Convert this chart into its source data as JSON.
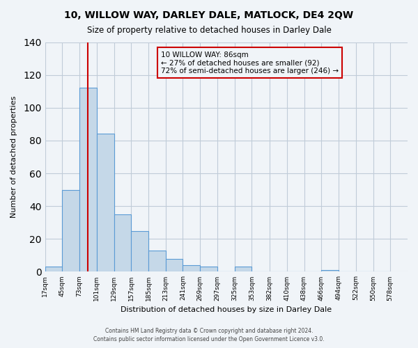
{
  "title": "10, WILLOW WAY, DARLEY DALE, MATLOCK, DE4 2QW",
  "subtitle": "Size of property relative to detached houses in Darley Dale",
  "xlabel": "Distribution of detached houses by size in Darley Dale",
  "ylabel": "Number of detached properties",
  "bar_values": [
    3,
    50,
    112,
    84,
    35,
    25,
    13,
    8,
    4,
    3,
    0,
    3,
    0,
    0,
    0,
    0,
    1,
    0,
    0,
    0
  ],
  "bin_labels": [
    "17sqm",
    "45sqm",
    "73sqm",
    "101sqm",
    "129sqm",
    "157sqm",
    "185sqm",
    "213sqm",
    "241sqm",
    "269sqm",
    "297sqm",
    "325sqm",
    "353sqm",
    "382sqm",
    "410sqm",
    "438sqm",
    "466sqm",
    "494sqm",
    "522sqm",
    "550sqm",
    "578sqm"
  ],
  "bin_edges": [
    17,
    45,
    73,
    101,
    129,
    157,
    185,
    213,
    241,
    269,
    297,
    325,
    353,
    382,
    410,
    438,
    466,
    494,
    522,
    550,
    578
  ],
  "bar_color": "#c5d8e8",
  "bar_edge_color": "#5b9bd5",
  "ylim": [
    0,
    140
  ],
  "yticks": [
    0,
    20,
    40,
    60,
    80,
    100,
    120,
    140
  ],
  "vline_x": 86,
  "vline_color": "#cc0000",
  "annotation_title": "10 WILLOW WAY: 86sqm",
  "annotation_line1": "← 27% of detached houses are smaller (92)",
  "annotation_line2": "72% of semi-detached houses are larger (246) →",
  "annotation_box_color": "#cc0000",
  "footer_line1": "Contains HM Land Registry data © Crown copyright and database right 2024.",
  "footer_line2": "Contains public sector information licensed under the Open Government Licence v3.0.",
  "bg_color": "#f0f4f8",
  "grid_color": "#c0ccd8"
}
